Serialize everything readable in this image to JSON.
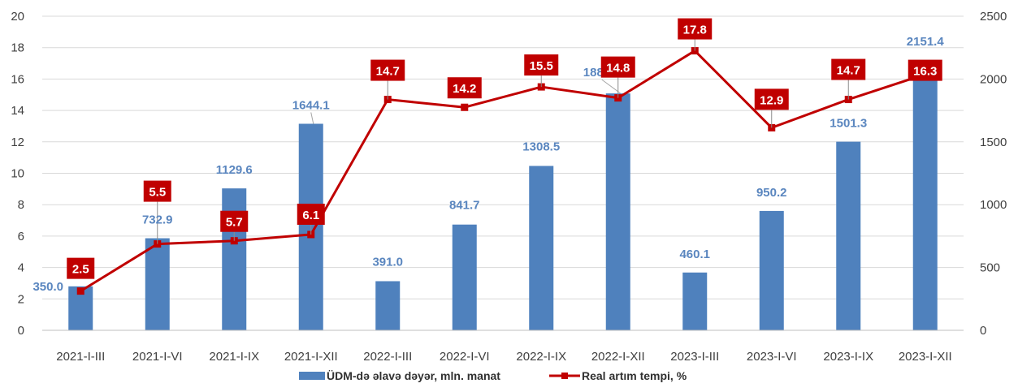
{
  "colors": {
    "bar": "#4f81bd",
    "bar_label": "#5a86bf",
    "line": "#c00000",
    "grid": "#d9d9d9",
    "text": "#404040"
  },
  "chart_data": {
    "type": "bar",
    "categories": [
      "2021-I-III",
      "2021-I-VI",
      "2021-I-IX",
      "2021-I-XII",
      "2022-I-III",
      "2022-I-VI",
      "2022-I-IX",
      "2022-I-XII",
      "2023-I-III",
      "2023-I-VI",
      "2023-I-IX",
      "2023-I-XII"
    ],
    "series": [
      {
        "name": "ÜDM-də əlavə dəyər, mln. manat",
        "kind": "bar",
        "axis": "right",
        "values": [
          350.0,
          732.9,
          1129.6,
          1644.1,
          391.0,
          841.7,
          1308.5,
          1885.6,
          460.1,
          950.2,
          1501.3,
          2151.4
        ],
        "labels": [
          "350.0",
          "732.9",
          "1129.6",
          "1644.1",
          "391.0",
          "841.7",
          "1308.5",
          "1885.6",
          "460.1",
          "950.2",
          "1501.3",
          "2151.4"
        ]
      },
      {
        "name": "Real artım tempi, %",
        "kind": "line",
        "axis": "left",
        "values": [
          2.5,
          5.5,
          5.7,
          6.1,
          14.7,
          14.2,
          15.5,
          14.8,
          17.8,
          12.9,
          14.7,
          16.3
        ],
        "labels": [
          "2.5",
          "5.5",
          "5.7",
          "6.1",
          "14.7",
          "14.2",
          "15.5",
          "14.8",
          "17.8",
          "12.9",
          "14.7",
          "16.3"
        ]
      }
    ],
    "left_axis": {
      "ylim": [
        0,
        20
      ],
      "ticks": [
        "0",
        "2",
        "4",
        "6",
        "8",
        "10",
        "12",
        "14",
        "16",
        "18",
        "20"
      ]
    },
    "right_axis": {
      "ylim": [
        0,
        2500
      ],
      "ticks": [
        "0",
        "500",
        "1000",
        "1500",
        "2000",
        "2500"
      ]
    },
    "grid": true,
    "legend_position": "bottom"
  }
}
